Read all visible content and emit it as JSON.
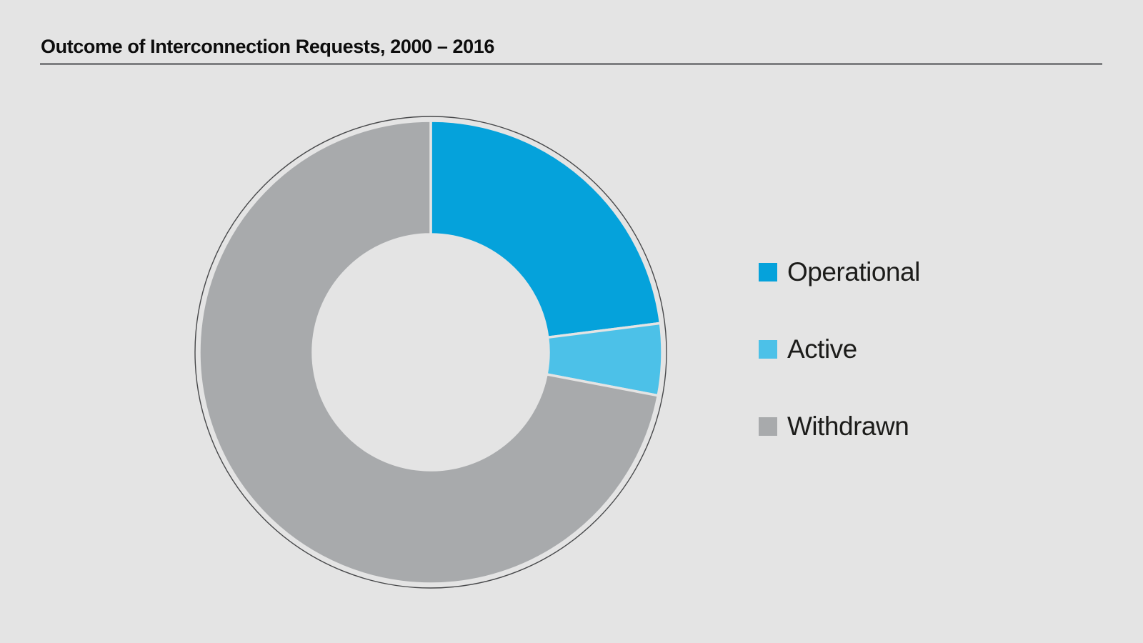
{
  "page": {
    "background": "#e4e4e4",
    "title": "Outcome of Interconnection Requests, 2000 – 2016",
    "title_rule_color": "#7e7f81"
  },
  "chart_data": {
    "type": "pie",
    "subtype": "donut",
    "title": "Outcome of Interconnection Requests, 2000 – 2016",
    "categories": [
      "Operational",
      "Active",
      "Withdrawn"
    ],
    "values": [
      23,
      5,
      72
    ],
    "unit": "percent_of_requests",
    "colors": [
      "#05a2db",
      "#4cc1e8",
      "#a8aaac"
    ],
    "start_angle_deg": 0,
    "direction": "clockwise",
    "inner_radius_ratio": 0.51,
    "outer_ring_outline_color": "#47484a",
    "slice_gap_color": "#e4e4e4",
    "grid": "off",
    "data_labels": "none",
    "legend_position": "right",
    "legend": [
      {
        "label": "Operational",
        "color": "#05a2db"
      },
      {
        "label": "Active",
        "color": "#4cc1e8"
      },
      {
        "label": "Withdrawn",
        "color": "#a8aaac"
      }
    ]
  }
}
